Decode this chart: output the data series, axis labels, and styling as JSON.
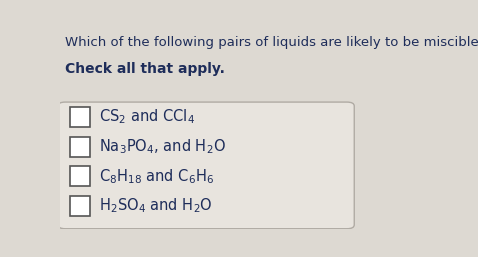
{
  "title_line1": "Which of the following pairs of liquids are likely to be miscible?",
  "title_line2": "Check all that apply.",
  "options_math": [
    "$\\mathregular{CS_2}$ and $\\mathregular{CCl_4}$",
    "$\\mathregular{Na_3PO_4}$, and $\\mathregular{H_2O}$",
    "$\\mathregular{C_8H_{18}}$ and $\\mathregular{C_6H_6}$",
    "$\\mathregular{H_2SO_4}$ and $\\mathregular{H_2O}$"
  ],
  "bg_color": "#ddd9d2",
  "box_facecolor": "#e8e4de",
  "box_edgecolor": "#b0aba4",
  "text_color": "#1e2d5a",
  "title_fontsize": 9.5,
  "subtitle_fontsize": 10.0,
  "option_fontsize": 10.5,
  "fig_width": 4.78,
  "fig_height": 2.57
}
